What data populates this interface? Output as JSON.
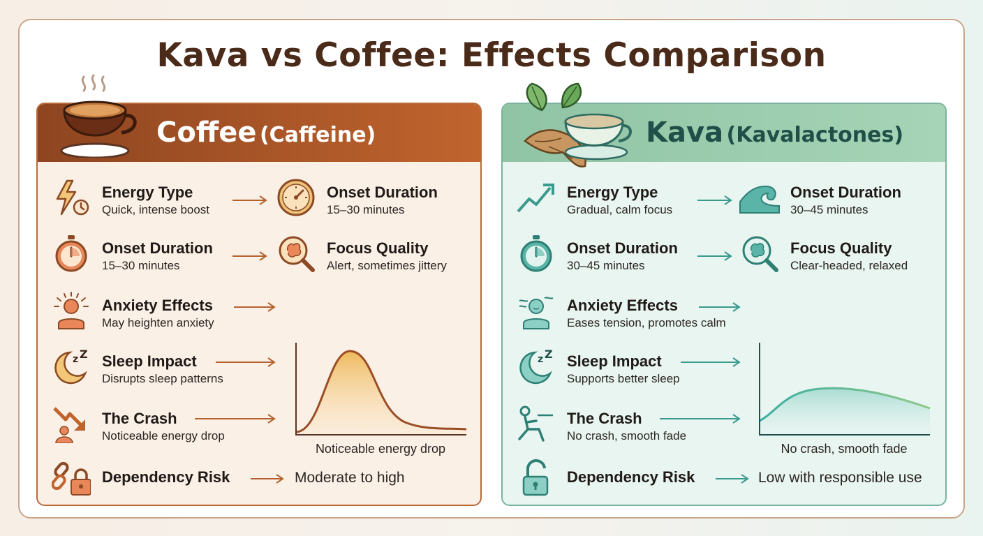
{
  "title": "Kava vs Coffee: Effects Comparison",
  "coffee": {
    "title": "Coffee",
    "subtitle": "(Caffeine)",
    "accent": "#b5622f",
    "rows": [
      {
        "label": "Energy Type",
        "value": "Quick, intense boost"
      },
      {
        "label": "Onset Duration",
        "value": "15–30 minutes"
      },
      {
        "label": "Anxiety Effects",
        "value": "May heighten anxiety"
      },
      {
        "label": "Sleep Impact",
        "value": "Disrupts sleep patterns"
      },
      {
        "label": "The Crash",
        "value": "Noticeable energy drop"
      },
      {
        "label": "Dependency Risk",
        "value": "Moderate to high"
      }
    ],
    "side": [
      {
        "label": "Onset Duration",
        "value": "15–30 minutes"
      },
      {
        "label": "Focus Quality",
        "value": "Alert, sometimes jittery"
      }
    ],
    "chart_caption": "Noticeable energy drop"
  },
  "kava": {
    "title": "Kava",
    "subtitle": "(Kavalactones)",
    "accent": "#3a9a8c",
    "rows": [
      {
        "label": "Energy Type",
        "value": "Gradual, calm focus"
      },
      {
        "label": "Onset Duration",
        "value": "30–45 minutes"
      },
      {
        "label": "Anxiety Effects",
        "value": "Eases tension, promotes calm"
      },
      {
        "label": "Sleep Impact",
        "value": "Supports better sleep"
      },
      {
        "label": "The Crash",
        "value": "No crash, smooth fade"
      },
      {
        "label": "Dependency Risk",
        "value": "Low with responsible use"
      }
    ],
    "side": [
      {
        "label": "Onset Duration",
        "value": "30–45 minutes"
      },
      {
        "label": "Focus Quality",
        "value": "Clear-headed, relaxed"
      }
    ],
    "chart_caption": "No crash, smooth fade"
  },
  "icons": [
    "lightning-clock-icon",
    "stopwatch-icon",
    "stressed-person-icon",
    "moon-zz-icon",
    "crash-arrow-icon",
    "chain-lock-icon",
    "gauge-icon",
    "brain-magnifier-icon",
    "trend-up-icon",
    "wave-icon",
    "calm-person-icon",
    "relaxed-person-icon",
    "open-lock-icon"
  ]
}
